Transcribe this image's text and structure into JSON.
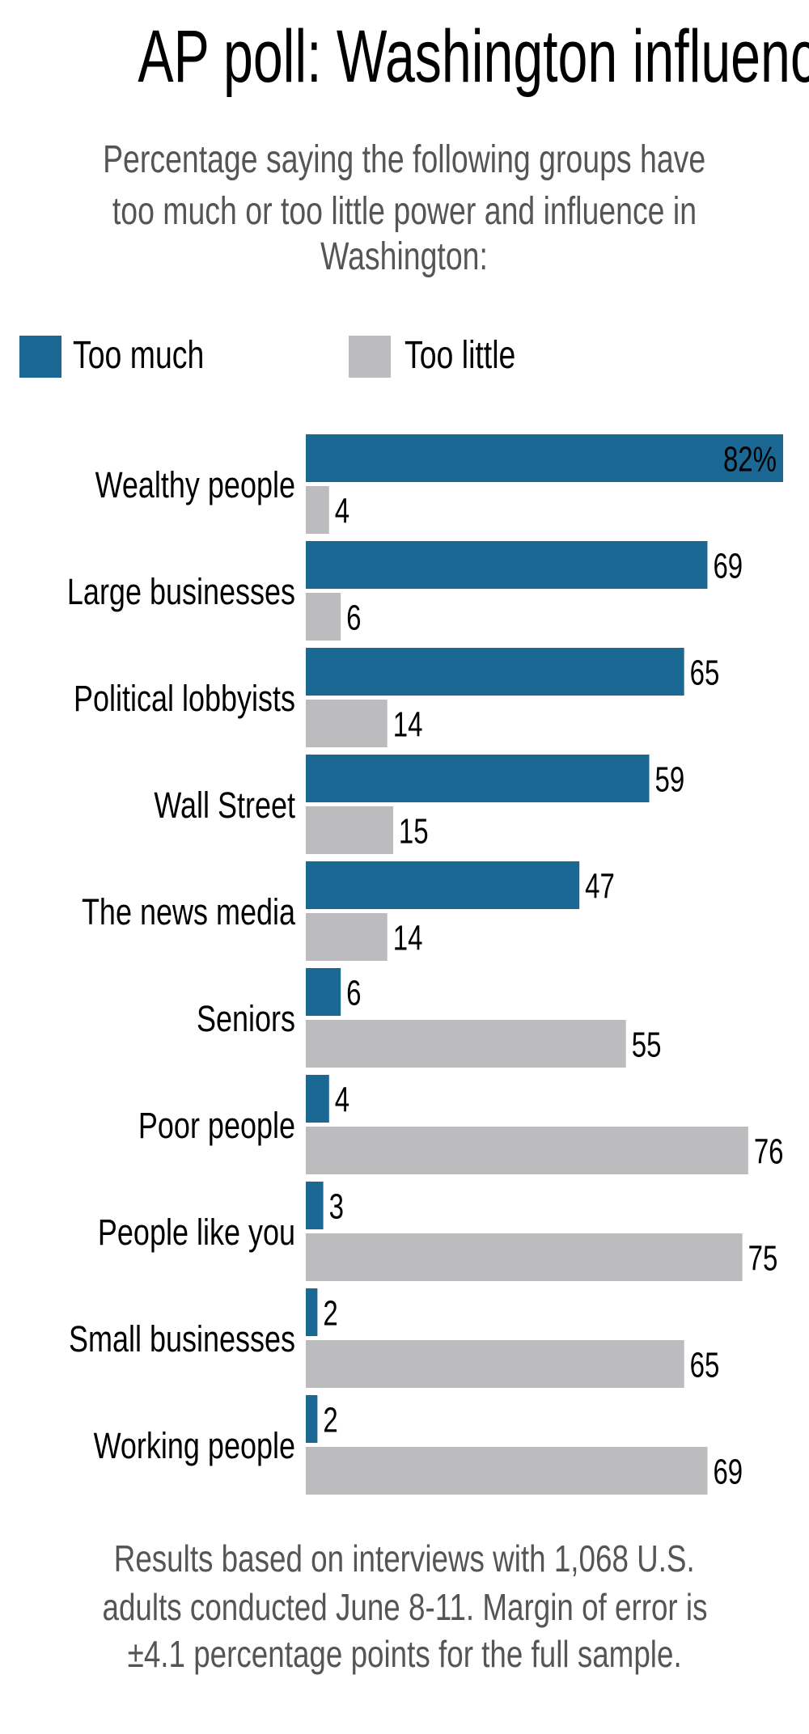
{
  "chart_data": {
    "type": "bar",
    "orientation": "horizontal",
    "title": "AP poll: Washington influence",
    "subtitle": [
      "Percentage saying the following groups have",
      "too much or too little power and influence in",
      "Washington:"
    ],
    "categories": [
      "Wealthy people",
      "Large businesses",
      "Political lobbyists",
      "Wall Street",
      "The news media",
      "Seniors",
      "Poor people",
      "People like you",
      "Small businesses",
      "Working people"
    ],
    "series": [
      {
        "name": "Too much",
        "color": "#1b6894",
        "values": [
          82,
          69,
          65,
          59,
          47,
          6,
          4,
          3,
          2,
          2
        ]
      },
      {
        "name": "Too little",
        "color": "#bcbcbe",
        "values": [
          4,
          6,
          14,
          15,
          14,
          55,
          76,
          75,
          65,
          69
        ]
      }
    ],
    "first_label_suffix": "%",
    "xlim": [
      0,
      82
    ],
    "grid": false,
    "legend": "top-left",
    "xlabel": "",
    "ylabel": "",
    "footnote": [
      "Results based on interviews with 1,068 U.S.",
      "adults conducted June 8-11. Margin of error is",
      "±4.1 percentage points for the full sample."
    ]
  },
  "legend": {
    "too_much": "Too much",
    "too_little": "Too little"
  }
}
